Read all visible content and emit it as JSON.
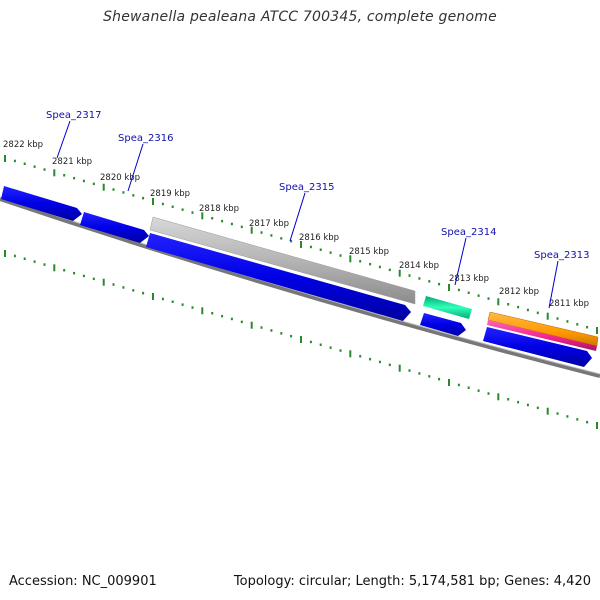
{
  "title": "Shewanella pealeana ATCC 700345, complete genome",
  "footer": {
    "accession": "Accession: NC_009901",
    "info": "Topology: circular; Length: 5,174,581 bp; Genes: 4,420"
  },
  "colors": {
    "tick": "#2a8a2a",
    "backbone": "#777777",
    "cds": "#0000ee",
    "gray_feature": "#bbbbbb",
    "teal_feature": "#22dd99",
    "orange_feature": "#ff9900",
    "pink_feature": "#ee2288",
    "gene_label": "#1111aa"
  },
  "kbp_labels": [
    "2822 kbp",
    "2821 kbp",
    "2820 kbp",
    "2819 kbp",
    "2818 kbp",
    "2817 kbp",
    "2816 kbp",
    "2815 kbp",
    "2814 kbp",
    "2813 kbp",
    "2812 kbp",
    "2811 kbp"
  ],
  "gene_labels": [
    "Spea_2317",
    "Spea_2316",
    "Spea_2315",
    "Spea_2314",
    "Spea_2313"
  ]
}
